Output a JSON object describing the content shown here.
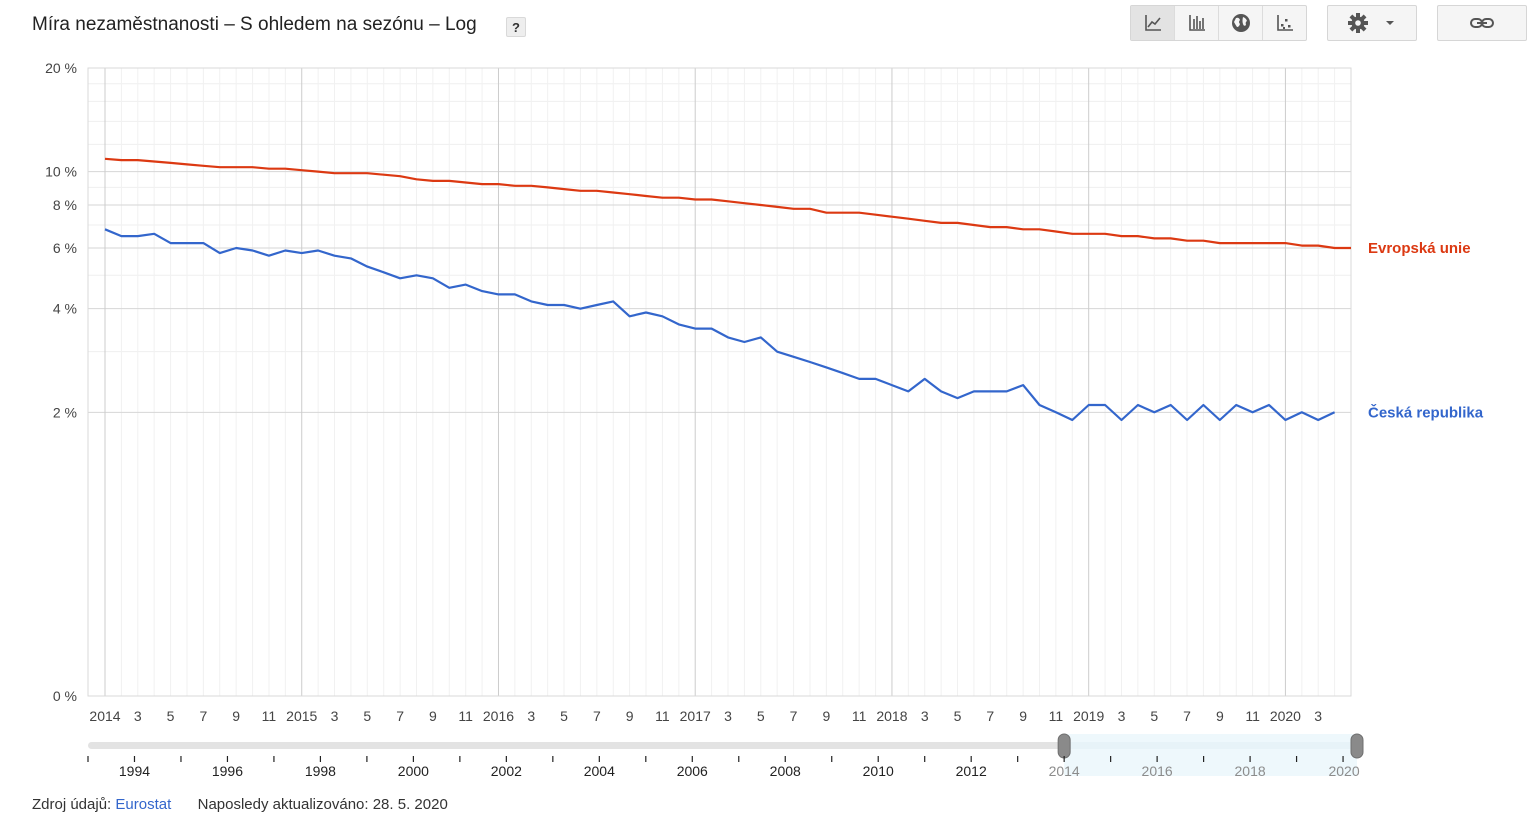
{
  "header": {
    "title": "Míra nezaměstnanosti – S ohledem na sezónu – Log",
    "help_label": "?"
  },
  "toolbar": {
    "chart_types": [
      {
        "icon": "line-chart-icon",
        "active": true
      },
      {
        "icon": "bar-chart-icon",
        "active": false
      },
      {
        "icon": "globe-map-icon",
        "active": false
      },
      {
        "icon": "scatter-chart-icon",
        "active": false
      }
    ],
    "settings_icon": "gear-icon",
    "link_icon": "link-icon"
  },
  "chart_data": {
    "type": "line",
    "scale": "log",
    "x_start": "2014-01",
    "ylim": [
      0,
      20
    ],
    "y_ticks": [
      "20 %",
      "10 %",
      "8 %",
      "6 %",
      "4 %",
      "2 %",
      "0 %"
    ],
    "x_tick_labels": [
      "2014",
      "3",
      "5",
      "7",
      "9",
      "11",
      "2015",
      "3",
      "5",
      "7",
      "9",
      "11",
      "2016",
      "3",
      "5",
      "7",
      "9",
      "11",
      "2017",
      "3",
      "5",
      "7",
      "9",
      "11",
      "2018",
      "3",
      "5",
      "7",
      "9",
      "11",
      "2019",
      "3",
      "5",
      "7",
      "9",
      "11",
      "2020",
      "3"
    ],
    "series": [
      {
        "name": "Evropská unie",
        "color": "#dc3912",
        "values": [
          10.9,
          10.8,
          10.8,
          10.7,
          10.6,
          10.5,
          10.4,
          10.3,
          10.3,
          10.3,
          10.2,
          10.2,
          10.1,
          10.0,
          9.9,
          9.9,
          9.9,
          9.8,
          9.7,
          9.5,
          9.4,
          9.4,
          9.3,
          9.2,
          9.2,
          9.1,
          9.1,
          9.0,
          8.9,
          8.8,
          8.8,
          8.7,
          8.6,
          8.5,
          8.4,
          8.4,
          8.3,
          8.3,
          8.2,
          8.1,
          8.0,
          7.9,
          7.8,
          7.8,
          7.6,
          7.6,
          7.6,
          7.5,
          7.4,
          7.3,
          7.2,
          7.1,
          7.1,
          7.0,
          6.9,
          6.9,
          6.8,
          6.8,
          6.7,
          6.6,
          6.6,
          6.6,
          6.5,
          6.5,
          6.4,
          6.4,
          6.3,
          6.3,
          6.2,
          6.2,
          6.2,
          6.2,
          6.2,
          6.1,
          6.1,
          6.0,
          6.0
        ]
      },
      {
        "name": "Česká republika",
        "color": "#3366cc",
        "values": [
          6.8,
          6.5,
          6.5,
          6.6,
          6.2,
          6.2,
          6.2,
          5.8,
          6.0,
          5.9,
          5.7,
          5.9,
          5.8,
          5.9,
          5.7,
          5.6,
          5.3,
          5.1,
          4.9,
          5.0,
          4.9,
          4.6,
          4.7,
          4.5,
          4.4,
          4.4,
          4.2,
          4.1,
          4.1,
          4.0,
          4.1,
          4.2,
          3.8,
          3.9,
          3.8,
          3.6,
          3.5,
          3.5,
          3.3,
          3.2,
          3.3,
          3.0,
          2.9,
          2.8,
          2.7,
          2.6,
          2.5,
          2.5,
          2.4,
          2.3,
          2.5,
          2.3,
          2.2,
          2.3,
          2.3,
          2.3,
          2.4,
          2.1,
          2.0,
          1.9,
          2.1,
          2.1,
          1.9,
          2.1,
          2.0,
          2.1,
          1.9,
          2.1,
          1.9,
          2.1,
          2.0,
          2.1,
          1.9,
          2.0,
          1.9,
          2.0
        ]
      }
    ],
    "timeline": {
      "year_labels": [
        "1994",
        "1996",
        "1998",
        "2000",
        "2002",
        "2004",
        "2006",
        "2008",
        "2010",
        "2012",
        "2014",
        "2016",
        "2018",
        "2020"
      ],
      "range_start": 1993,
      "range_end": 2020.3,
      "selected_start": 2014,
      "selected_end": 2020.3
    }
  },
  "footer": {
    "source_label": "Zdroj údajů:",
    "source_link": "Eurostat",
    "updated_text": "Naposledy aktualizováno: 28. 5. 2020"
  }
}
